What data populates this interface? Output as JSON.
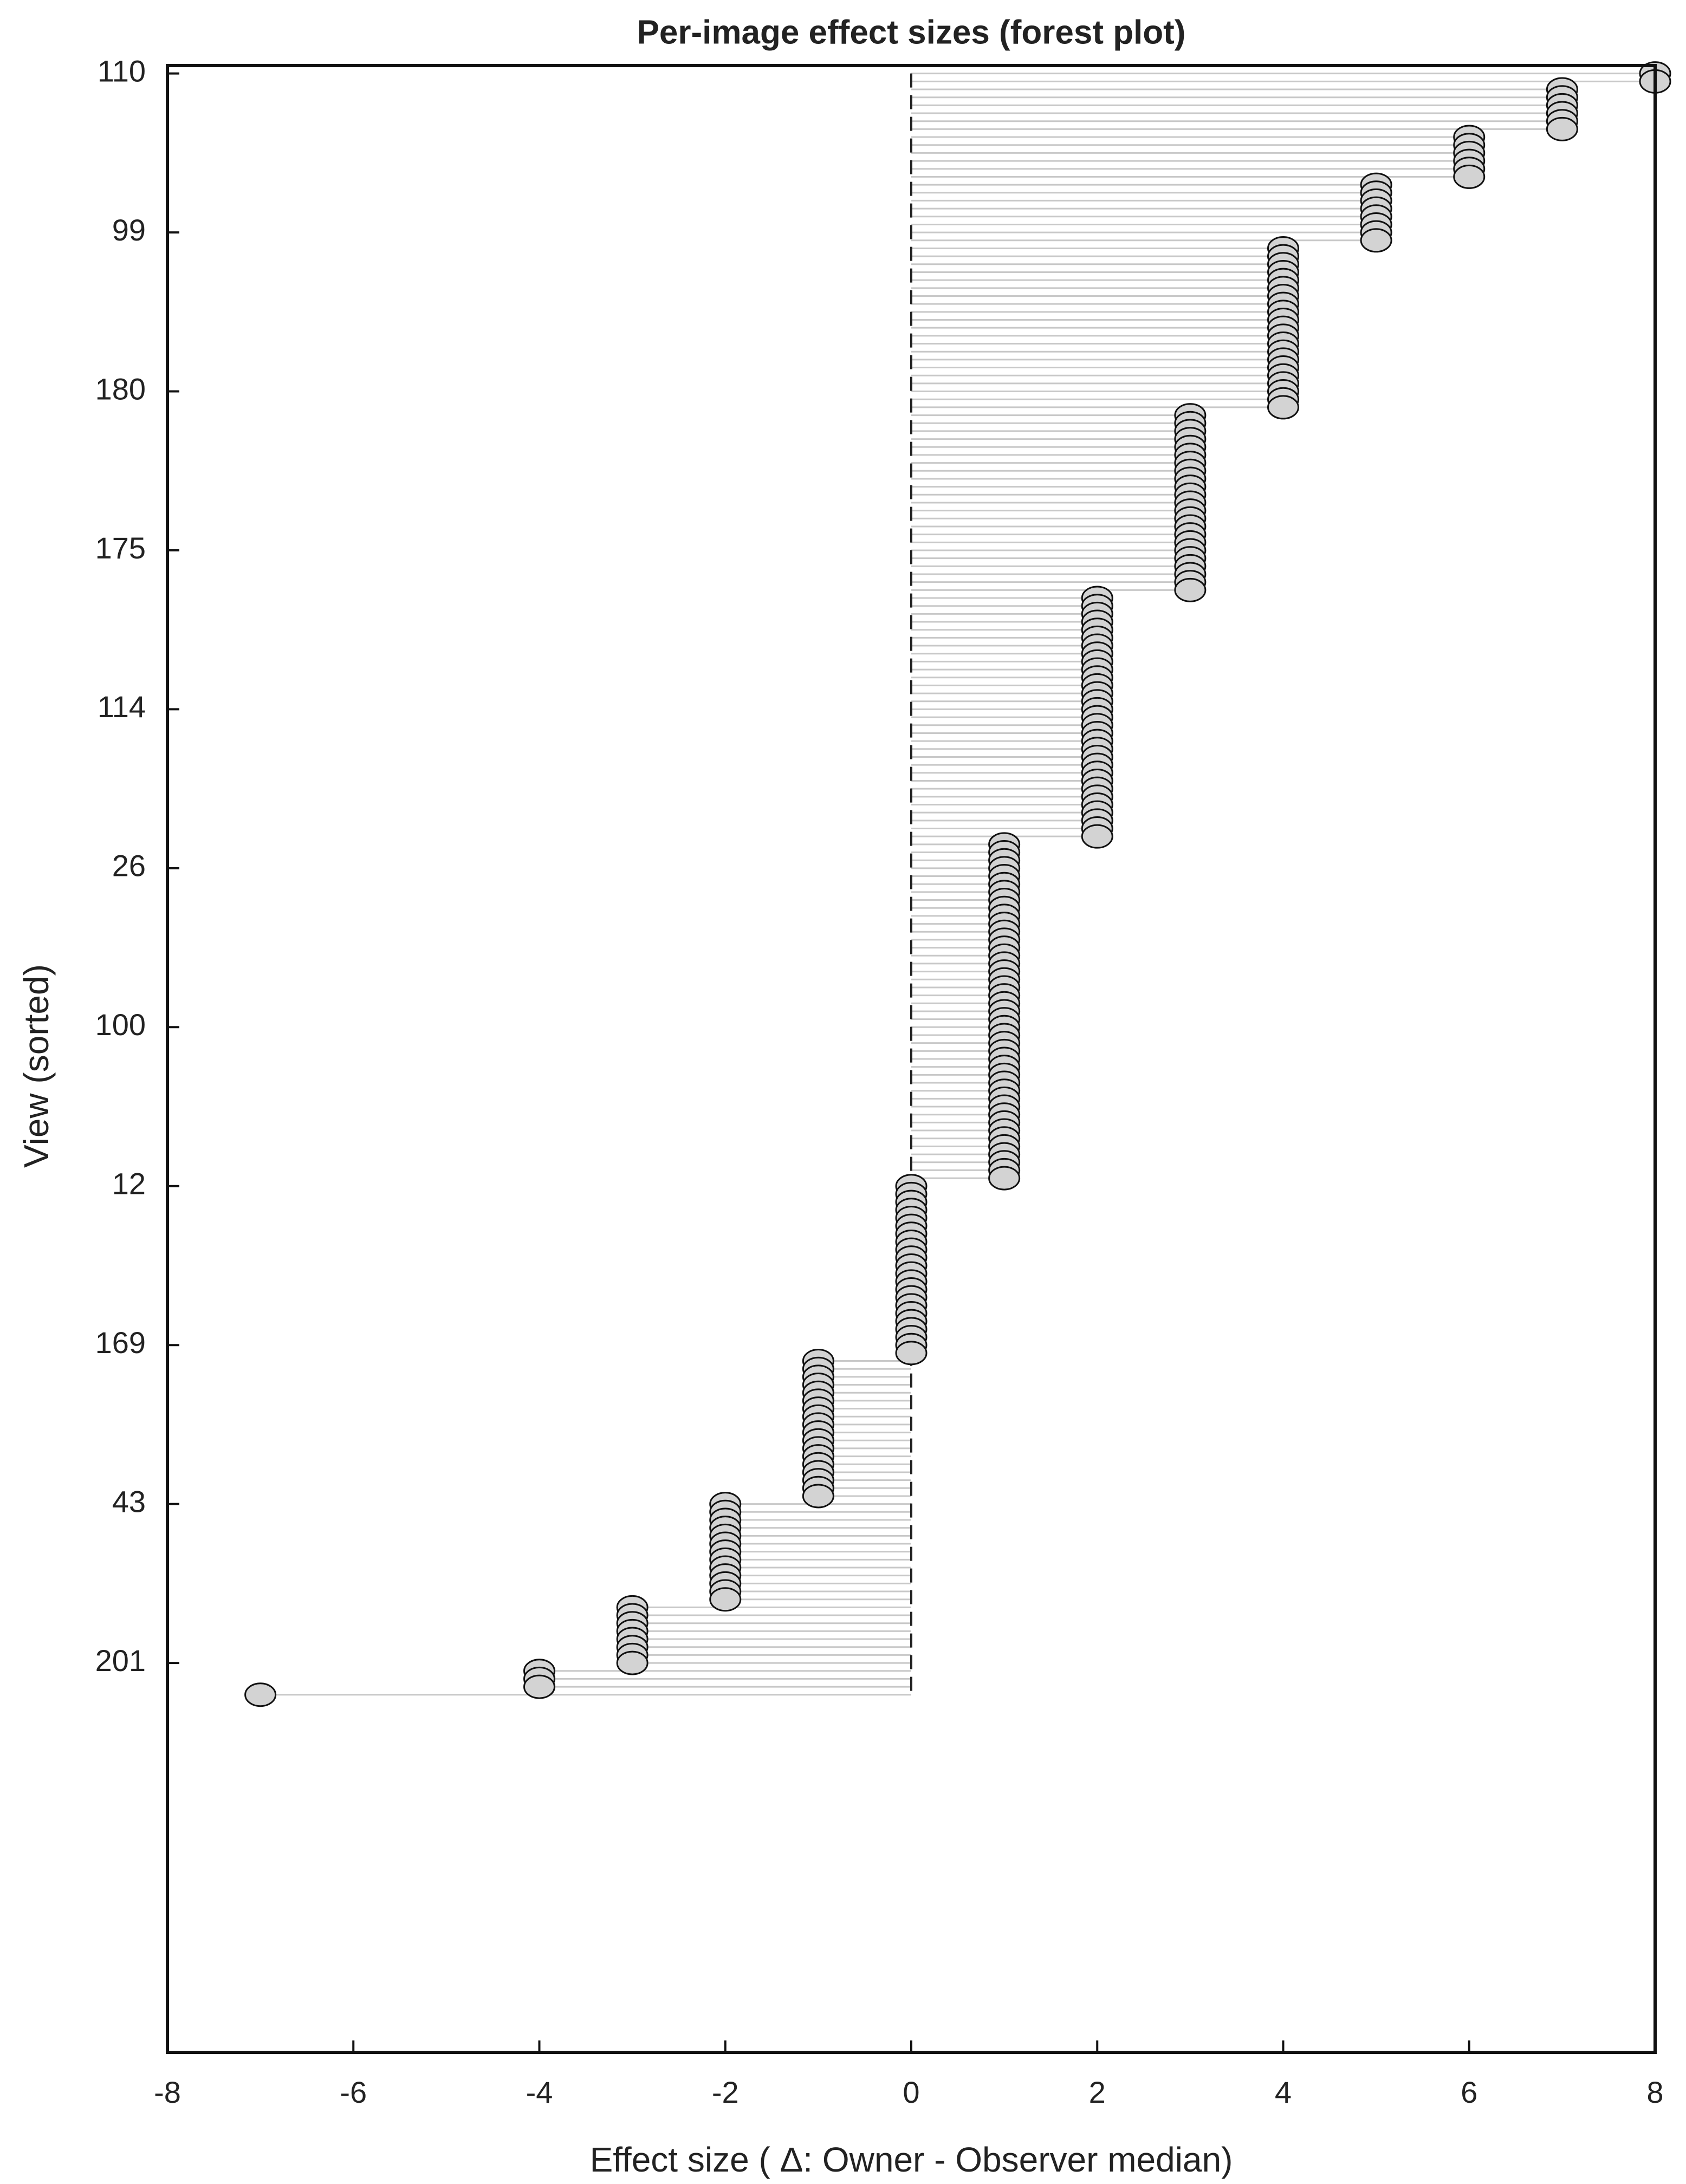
{
  "chart_data": {
    "type": "forest",
    "title": "Per-image effect sizes (forest plot)",
    "x_label": "Effect size ( Δ: Owner - Observer median)",
    "y_label": "View (sorted)",
    "xlim": [
      -8,
      8
    ],
    "xticks": [
      -8,
      -6,
      -4,
      -2,
      0,
      2,
      4,
      6,
      8
    ],
    "color": "#d3d3d3",
    "categories": [
      "110",
      null,
      null,
      null,
      null,
      null,
      null,
      null,
      null,
      null,
      null,
      null,
      null,
      null,
      null,
      null,
      null,
      null,
      null,
      null,
      "99",
      null,
      null,
      null,
      null,
      null,
      null,
      null,
      null,
      null,
      null,
      null,
      null,
      null,
      null,
      null,
      null,
      null,
      null,
      null,
      "180",
      null,
      null,
      null,
      null,
      null,
      null,
      null,
      null,
      null,
      null,
      null,
      null,
      null,
      null,
      null,
      null,
      null,
      null,
      null,
      "175",
      null,
      null,
      null,
      null,
      null,
      null,
      null,
      null,
      null,
      null,
      null,
      null,
      null,
      null,
      null,
      null,
      null,
      null,
      null,
      "114",
      null,
      null,
      null,
      null,
      null,
      null,
      null,
      null,
      null,
      null,
      null,
      null,
      null,
      null,
      null,
      null,
      null,
      null,
      null,
      "26",
      null,
      null,
      null,
      null,
      null,
      null,
      null,
      null,
      null,
      null,
      null,
      null,
      null,
      null,
      null,
      null,
      null,
      null,
      null,
      "100",
      null,
      null,
      null,
      null,
      null,
      null,
      null,
      null,
      null,
      null,
      null,
      null,
      null,
      null,
      null,
      null,
      null,
      null,
      null,
      "12",
      null,
      null,
      null,
      null,
      null,
      null,
      null,
      null,
      null,
      null,
      null,
      null,
      null,
      null,
      null,
      null,
      null,
      null,
      null,
      "169",
      null,
      null,
      null,
      null,
      null,
      null,
      null,
      null,
      null,
      null,
      null,
      null,
      null,
      null,
      null,
      null,
      null,
      null,
      null,
      "43",
      null,
      null,
      null,
      null,
      null,
      null,
      null,
      null,
      null,
      null,
      null,
      null,
      null,
      null,
      null,
      null,
      null,
      null,
      null,
      "201",
      null,
      null,
      null,
      null
    ],
    "values": [
      8,
      8,
      7,
      7,
      7,
      7,
      7,
      7,
      6,
      6,
      6,
      6,
      6,
      6,
      5,
      5,
      5,
      5,
      5,
      5,
      5,
      5,
      4,
      4,
      4,
      4,
      4,
      4,
      4,
      4,
      4,
      4,
      4,
      4,
      4,
      4,
      4,
      4,
      4,
      4,
      4,
      4,
      4,
      3,
      3,
      3,
      3,
      3,
      3,
      3,
      3,
      3,
      3,
      3,
      3,
      3,
      3,
      3,
      3,
      3,
      3,
      3,
      3,
      3,
      3,
      3,
      2,
      2,
      2,
      2,
      2,
      2,
      2,
      2,
      2,
      2,
      2,
      2,
      2,
      2,
      2,
      2,
      2,
      2,
      2,
      2,
      2,
      2,
      2,
      2,
      2,
      2,
      2,
      2,
      2,
      2,
      2,
      1,
      1,
      1,
      1,
      1,
      1,
      1,
      1,
      1,
      1,
      1,
      1,
      1,
      1,
      1,
      1,
      1,
      1,
      1,
      1,
      1,
      1,
      1,
      1,
      1,
      1,
      1,
      1,
      1,
      1,
      1,
      1,
      1,
      1,
      1,
      1,
      1,
      1,
      1,
      1,
      1,
      1,
      1,
      0,
      0,
      0,
      0,
      0,
      0,
      0,
      0,
      0,
      0,
      0,
      0,
      0,
      0,
      0,
      0,
      0,
      0,
      0,
      0,
      0,
      0,
      -1,
      -1,
      -1,
      -1,
      -1,
      -1,
      -1,
      -1,
      -1,
      -1,
      -1,
      -1,
      -1,
      -1,
      -1,
      -1,
      -1,
      -1,
      -2,
      -2,
      -2,
      -2,
      -2,
      -2,
      -2,
      -2,
      -2,
      -2,
      -2,
      -2,
      -2,
      -3,
      -3,
      -3,
      -3,
      -3,
      -3,
      -3,
      -3,
      -4,
      -4,
      -4,
      -7
    ]
  }
}
